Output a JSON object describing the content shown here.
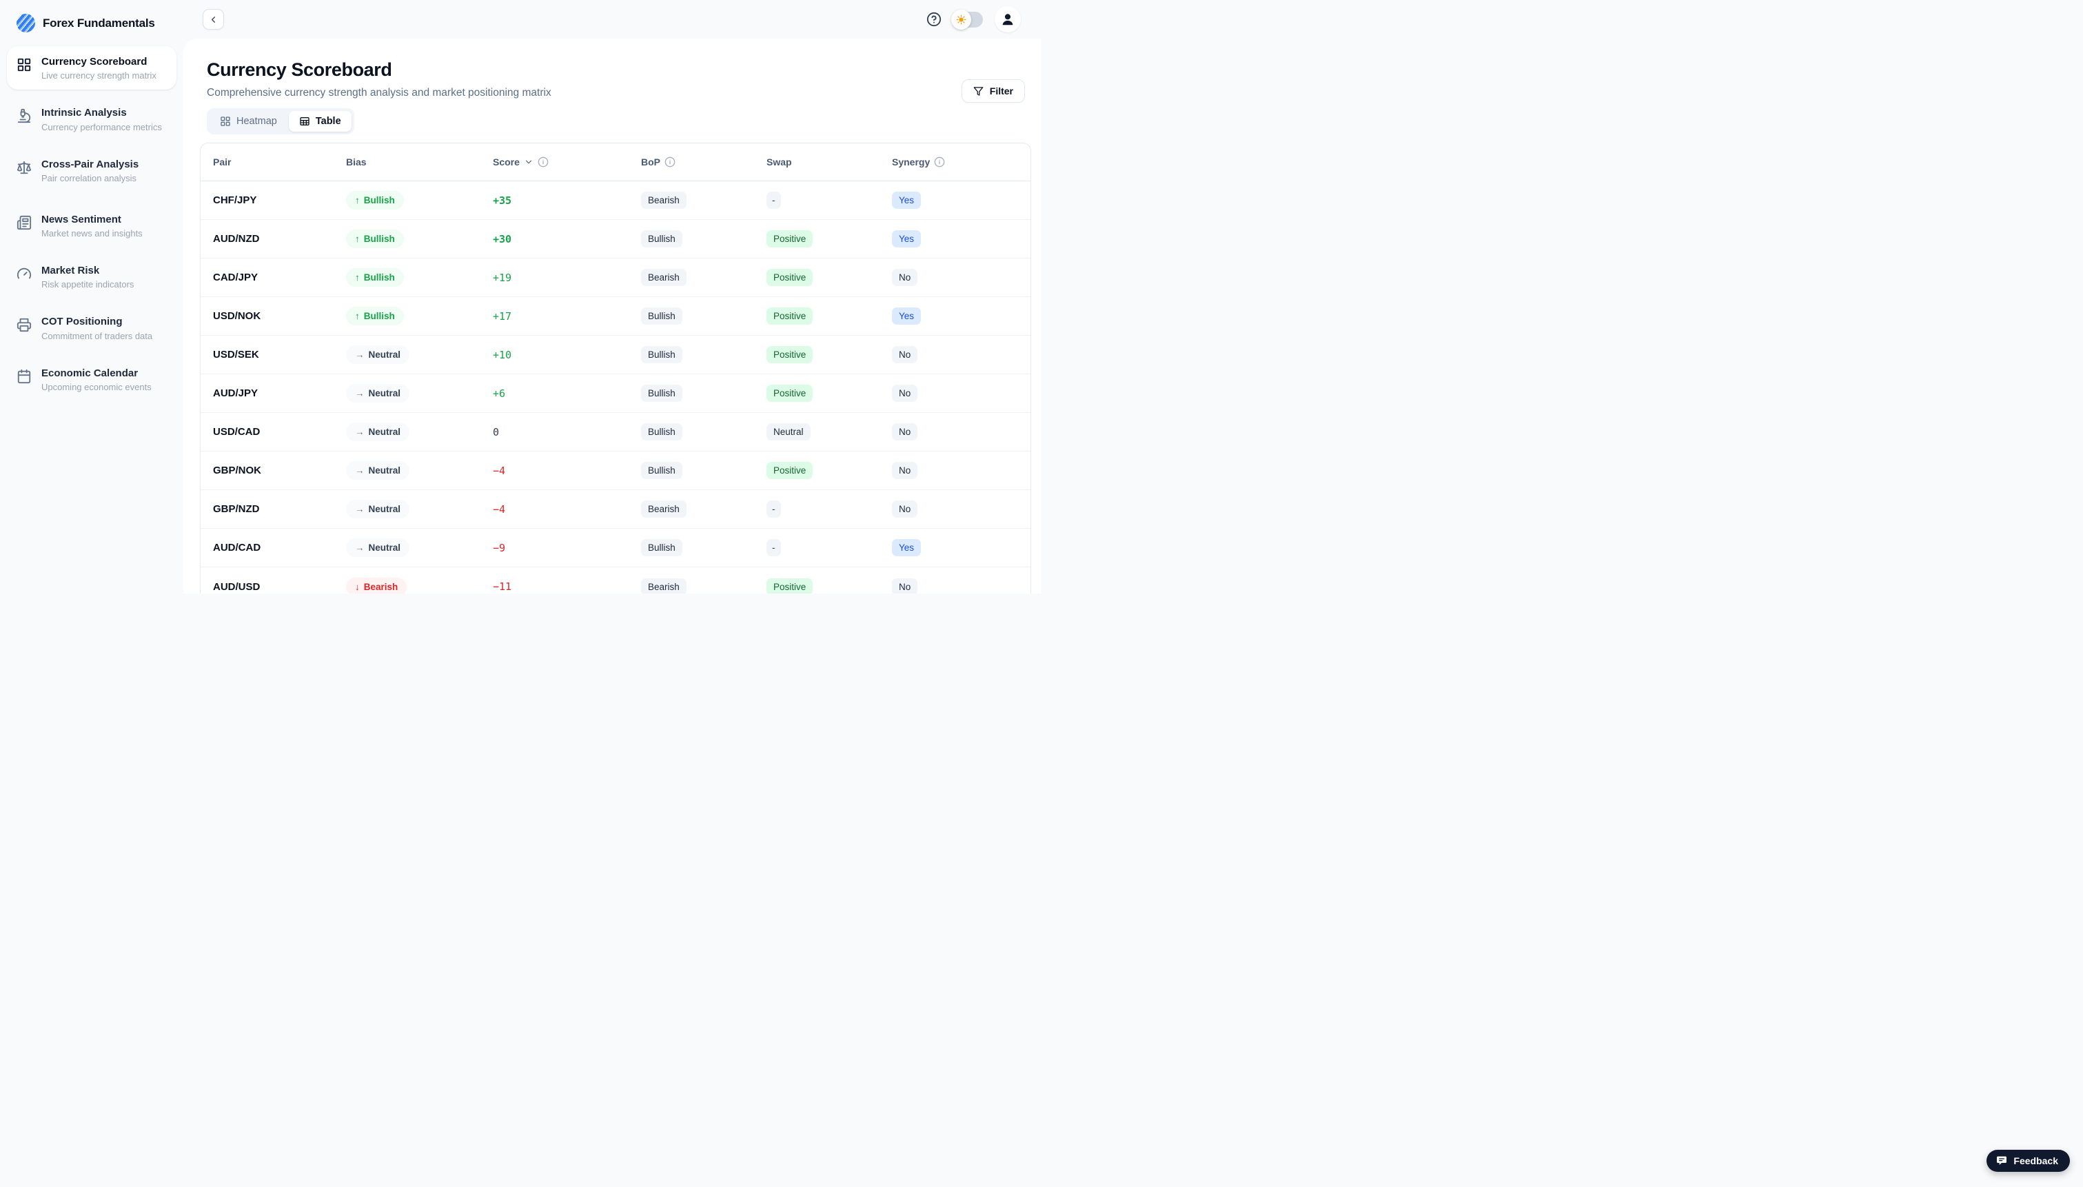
{
  "app": {
    "title": "Forex Fundamentals",
    "logo_icon": "scribble-sphere-icon"
  },
  "topbar": {
    "collapse_icon": "chevron-left-icon",
    "help_icon": "question-circle-icon",
    "theme_toggle": {
      "state": "light",
      "icon": "sun-icon"
    },
    "avatar_icon": "person-icon"
  },
  "sidebar": {
    "items": [
      {
        "label": "Currency Scoreboard",
        "desc": "Live currency strength matrix",
        "icon": "grid-icon",
        "active": true
      },
      {
        "label": "Intrinsic Analysis",
        "desc": "Currency performance metrics",
        "icon": "microscope-icon",
        "active": false
      },
      {
        "label": "Cross-Pair Analysis",
        "desc": "Pair correlation analysis",
        "icon": "scale-icon",
        "active": false
      },
      {
        "label": "News Sentiment",
        "desc": "Market news and insights",
        "icon": "newspaper-icon",
        "active": false,
        "gap_above": true
      },
      {
        "label": "Market Risk",
        "desc": "Risk appetite indicators",
        "icon": "gauge-icon",
        "active": false
      },
      {
        "label": "COT Positioning",
        "desc": "Commitment of traders data",
        "icon": "printer-icon",
        "active": false
      },
      {
        "label": "Economic Calendar",
        "desc": "Upcoming economic events",
        "icon": "calendar-icon",
        "active": false
      }
    ]
  },
  "page": {
    "title": "Currency Scoreboard",
    "subtitle": "Comprehensive currency strength analysis and market positioning matrix",
    "view_toggle": [
      {
        "label": "Heatmap",
        "icon": "heatmap-grid-icon",
        "active": false
      },
      {
        "label": "Table",
        "icon": "table-grid-icon",
        "active": true
      }
    ],
    "filter_label": "Filter",
    "filter_icon": "funnel-icon"
  },
  "table": {
    "columns": [
      {
        "label": "Pair"
      },
      {
        "label": "Bias"
      },
      {
        "label": "Score",
        "sortable": true,
        "info": true
      },
      {
        "label": "BoP",
        "info": true
      },
      {
        "label": "Swap"
      },
      {
        "label": "Synergy",
        "info": true
      }
    ],
    "rows": [
      {
        "pair": "CHF/JPY",
        "bias": "Bullish",
        "score": "+35",
        "bop": "Bearish",
        "swap": "-",
        "synergy": "Yes"
      },
      {
        "pair": "AUD/NZD",
        "bias": "Bullish",
        "score": "+30",
        "bop": "Bullish",
        "swap": "Positive",
        "synergy": "Yes"
      },
      {
        "pair": "CAD/JPY",
        "bias": "Bullish",
        "score": "+19",
        "bop": "Bearish",
        "swap": "Positive",
        "synergy": "No"
      },
      {
        "pair": "USD/NOK",
        "bias": "Bullish",
        "score": "+17",
        "bop": "Bullish",
        "swap": "Positive",
        "synergy": "Yes"
      },
      {
        "pair": "USD/SEK",
        "bias": "Neutral",
        "score": "+10",
        "bop": "Bullish",
        "swap": "Positive",
        "synergy": "No"
      },
      {
        "pair": "AUD/JPY",
        "bias": "Neutral",
        "score": "+6",
        "bop": "Bullish",
        "swap": "Positive",
        "synergy": "No"
      },
      {
        "pair": "USD/CAD",
        "bias": "Neutral",
        "score": "0",
        "bop": "Bullish",
        "swap": "Neutral",
        "synergy": "No"
      },
      {
        "pair": "GBP/NOK",
        "bias": "Neutral",
        "score": "−4",
        "bop": "Bullish",
        "swap": "Positive",
        "synergy": "No"
      },
      {
        "pair": "GBP/NZD",
        "bias": "Neutral",
        "score": "−4",
        "bop": "Bearish",
        "swap": "-",
        "synergy": "No"
      },
      {
        "pair": "AUD/CAD",
        "bias": "Neutral",
        "score": "−9",
        "bop": "Bullish",
        "swap": "-",
        "synergy": "Yes"
      },
      {
        "pair": "AUD/USD",
        "bias": "Bearish",
        "score": "−11",
        "bop": "Bearish",
        "swap": "Positive",
        "synergy": "No"
      }
    ]
  },
  "feedback": {
    "label": "Feedback",
    "icon": "chat-bubble-icon"
  },
  "colors": {
    "accent_blue": "#2f7ef6",
    "positive_green": "#16a34a",
    "negative_red": "#dc2626",
    "badge_gray_bg": "#f1f5f9",
    "badge_green_bg": "#dcfce7",
    "badge_blue_bg": "#dbeafe",
    "dark_navy": "#10192e",
    "panel_bg": "#ffffff",
    "chrome_bg": "#f9fafb"
  }
}
